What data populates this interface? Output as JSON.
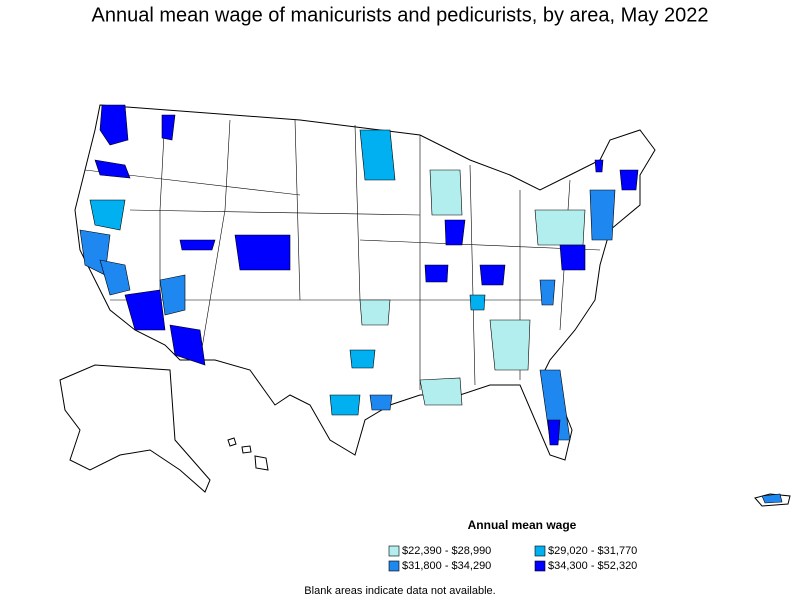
{
  "title": "Annual mean wage of manicurists and pedicurists, by area, May 2022",
  "legend": {
    "title": "Annual mean wage",
    "items": [
      {
        "label": "$22,390 - $28,990",
        "color": "#b2eeee"
      },
      {
        "label": "$29,020 - $31,770",
        "color": "#00b0f0"
      },
      {
        "label": "$31,800 - $34,290",
        "color": "#1e88f0"
      },
      {
        "label": "$34,300 - $52,320",
        "color": "#0000ff"
      }
    ]
  },
  "note": "Blank areas indicate data not available."
}
